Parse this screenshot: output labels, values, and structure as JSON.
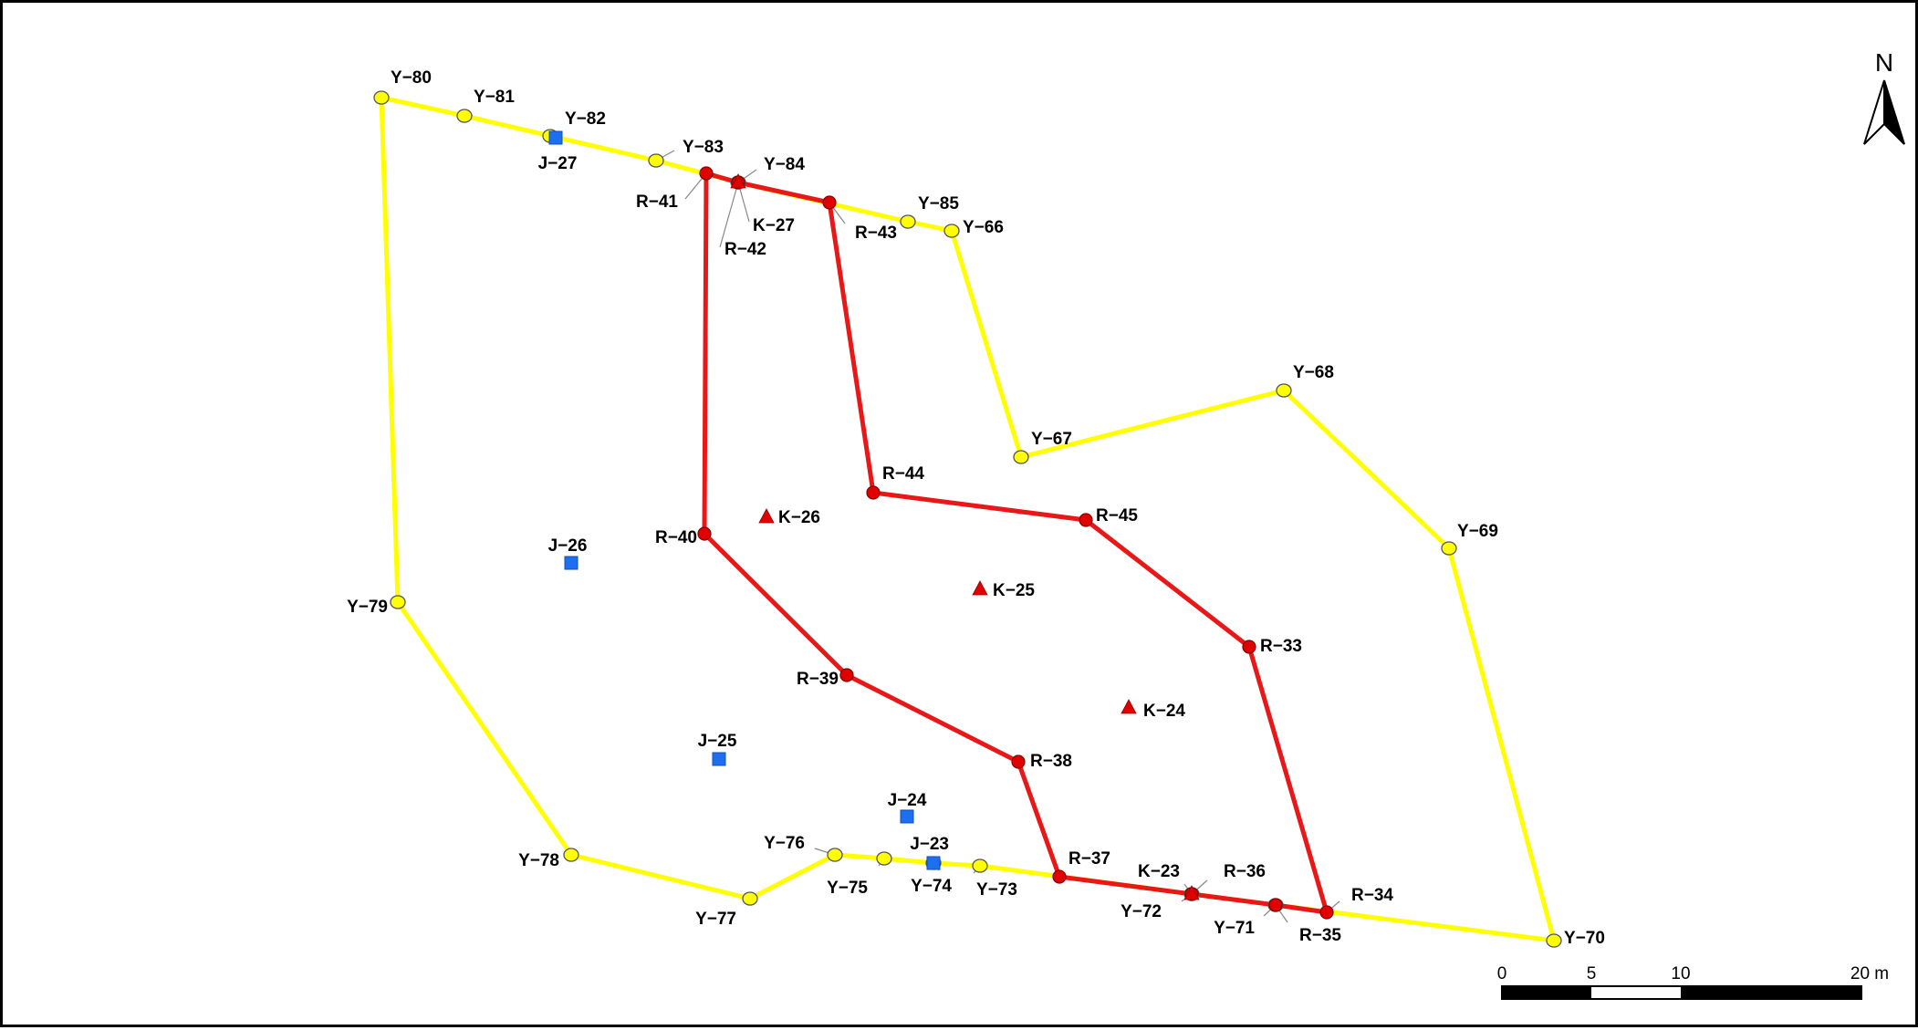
{
  "map": {
    "colors": {
      "yellow_route": "#ffff00",
      "yellow_point": "#ffff00",
      "red_route": "#e81818",
      "red_point": "#e00000",
      "blue_point": "#1e6ff0",
      "triangle": "#e00000"
    },
    "yellow_route_order": [
      "Y-66",
      "Y-67",
      "Y-68",
      "Y-69",
      "Y-70",
      "Y-71",
      "Y-72",
      "Y-73",
      "Y-74",
      "Y-75",
      "Y-76",
      "Y-77",
      "Y-78",
      "Y-79",
      "Y-80",
      "Y-81",
      "Y-82",
      "Y-83",
      "Y-84",
      "Y-85",
      "Y-66"
    ],
    "red_route_order": [
      "R-33",
      "R-34",
      "R-35",
      "R-36",
      "R-37",
      "R-38",
      "R-39",
      "R-40",
      "R-41",
      "R-42",
      "R-43",
      "R-44",
      "R-45",
      "R-33"
    ],
    "y_points": [
      {
        "id": "Y-66",
        "label": "Y−66"
      },
      {
        "id": "Y-67",
        "label": "Y−67"
      },
      {
        "id": "Y-68",
        "label": "Y−68"
      },
      {
        "id": "Y-69",
        "label": "Y−69"
      },
      {
        "id": "Y-70",
        "label": "Y−70"
      },
      {
        "id": "Y-71",
        "label": "Y−71"
      },
      {
        "id": "Y-72",
        "label": "Y−72"
      },
      {
        "id": "Y-73",
        "label": "Y−73"
      },
      {
        "id": "Y-74",
        "label": "Y−74"
      },
      {
        "id": "Y-75",
        "label": "Y−75"
      },
      {
        "id": "Y-76",
        "label": "Y−76"
      },
      {
        "id": "Y-77",
        "label": "Y−77"
      },
      {
        "id": "Y-78",
        "label": "Y−78"
      },
      {
        "id": "Y-79",
        "label": "Y−79"
      },
      {
        "id": "Y-80",
        "label": "Y−80"
      },
      {
        "id": "Y-81",
        "label": "Y−81"
      },
      {
        "id": "Y-82",
        "label": "Y−82"
      },
      {
        "id": "Y-83",
        "label": "Y−83"
      },
      {
        "id": "Y-84",
        "label": "Y−84"
      },
      {
        "id": "Y-85",
        "label": "Y−85"
      }
    ],
    "r_points": [
      {
        "id": "R-33",
        "label": "R−33"
      },
      {
        "id": "R-34",
        "label": "R−34"
      },
      {
        "id": "R-35",
        "label": "R−35"
      },
      {
        "id": "R-36",
        "label": "R−36"
      },
      {
        "id": "R-37",
        "label": "R−37"
      },
      {
        "id": "R-38",
        "label": "R−38"
      },
      {
        "id": "R-39",
        "label": "R−39"
      },
      {
        "id": "R-40",
        "label": "R−40"
      },
      {
        "id": "R-41",
        "label": "R−41"
      },
      {
        "id": "R-42",
        "label": "R−42"
      },
      {
        "id": "R-43",
        "label": "R−43"
      },
      {
        "id": "R-44",
        "label": "R−44"
      },
      {
        "id": "R-45",
        "label": "R−45"
      }
    ],
    "j_points": [
      {
        "id": "J-23",
        "label": "J−23"
      },
      {
        "id": "J-24",
        "label": "J−24"
      },
      {
        "id": "J-25",
        "label": "J−25"
      },
      {
        "id": "J-26",
        "label": "J−26"
      },
      {
        "id": "J-27",
        "label": "J−27"
      }
    ],
    "k_points": [
      {
        "id": "K-23",
        "label": "K−23"
      },
      {
        "id": "K-24",
        "label": "K−24"
      },
      {
        "id": "K-25",
        "label": "K−25"
      },
      {
        "id": "K-26",
        "label": "K−26"
      },
      {
        "id": "K-27",
        "label": "K−27"
      }
    ],
    "north_arrow": {
      "label": "N"
    },
    "scale_bar": {
      "ticks": [
        "0",
        "5",
        "10",
        "20 m"
      ],
      "tick_values": [
        0,
        5,
        10,
        20
      ],
      "unit": "m"
    }
  }
}
